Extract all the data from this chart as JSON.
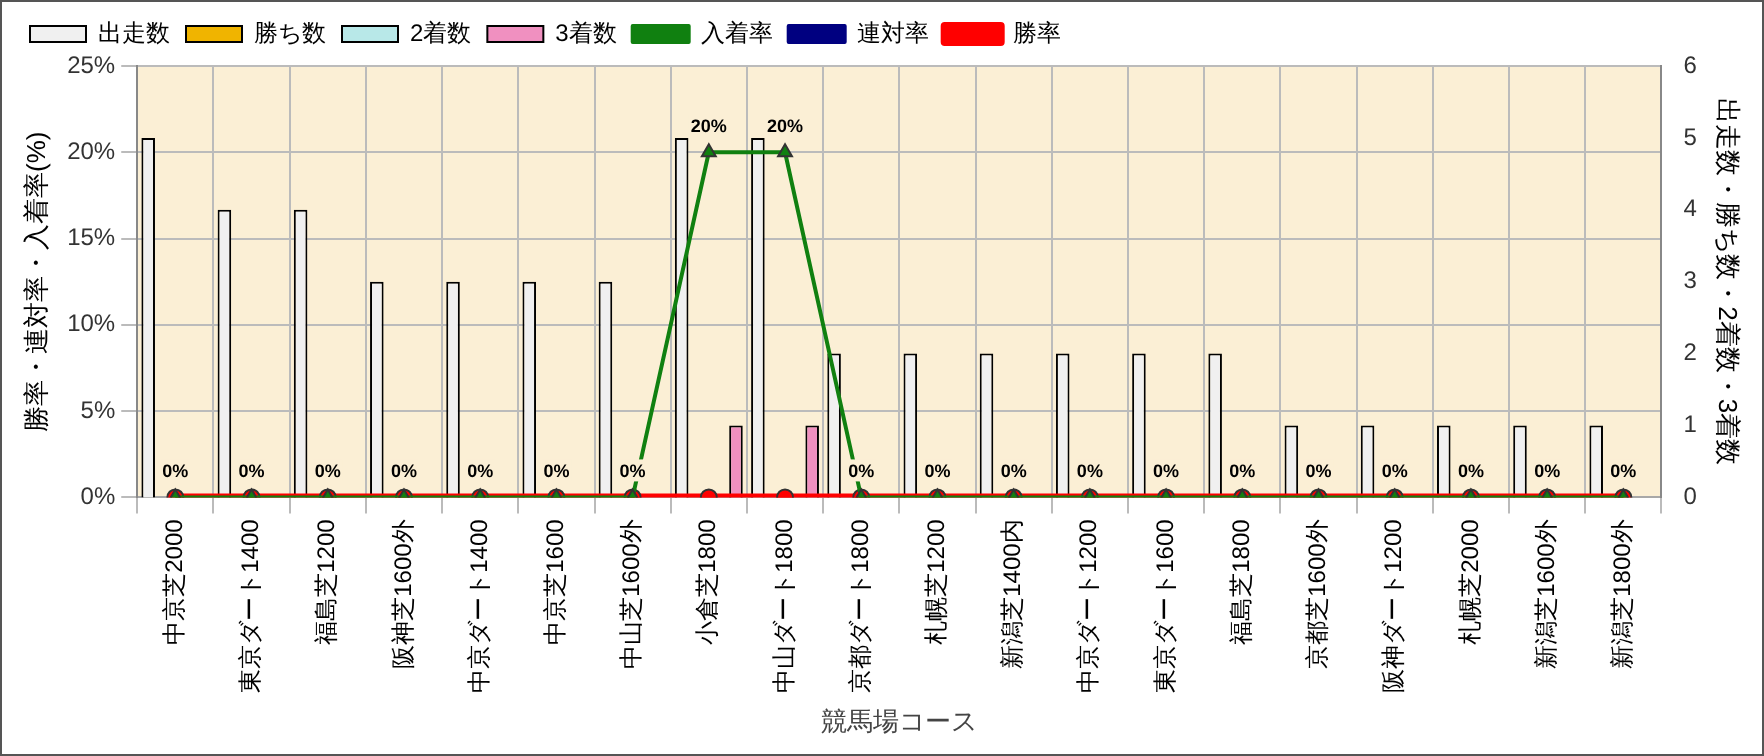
{
  "chart_data": {
    "type": "bar",
    "xlabel": "競馬場コース",
    "ylabel": "勝率・連対率・入着率(%)",
    "y2label": "出走数・勝ち数・2着数・3着数",
    "categories": [
      "中京芝2000",
      "東京ダート1400",
      "福島芝1200",
      "阪神芝1600外",
      "中京ダート1400",
      "中京芝1600",
      "中山芝1600外",
      "小倉芝1800",
      "中山ダート1800",
      "京都ダート1800",
      "札幌芝1200",
      "新潟芝1400内",
      "中京ダート1200",
      "東京ダート1600",
      "福島芝1800",
      "京都芝1600外",
      "阪神ダート1200",
      "札幌芝2000",
      "新潟芝1600外",
      "新潟芝1800外"
    ],
    "series": [
      {
        "name": "出走数",
        "axis": "y2",
        "color": "#f0f0f0",
        "values": [
          5,
          4,
          4,
          3,
          3,
          3,
          3,
          5,
          5,
          2,
          2,
          2,
          2,
          2,
          2,
          1,
          1,
          1,
          1,
          1
        ]
      },
      {
        "name": "勝ち数",
        "axis": "y2",
        "color": "#f0b400",
        "values": [
          0,
          0,
          0,
          0,
          0,
          0,
          0,
          0,
          0,
          0,
          0,
          0,
          0,
          0,
          0,
          0,
          0,
          0,
          0,
          0
        ]
      },
      {
        "name": "2着数",
        "axis": "y2",
        "color": "#b8e8e8",
        "values": [
          0,
          0,
          0,
          0,
          0,
          0,
          0,
          0,
          0,
          0,
          0,
          0,
          0,
          0,
          0,
          0,
          0,
          0,
          0,
          0
        ]
      },
      {
        "name": "3着数",
        "axis": "y2",
        "color": "#f090c0",
        "values": [
          0,
          0,
          0,
          0,
          0,
          0,
          0,
          1,
          1,
          0,
          0,
          0,
          0,
          0,
          0,
          0,
          0,
          0,
          0,
          0
        ]
      },
      {
        "name": "入着率",
        "type": "line",
        "color": "#108010",
        "marker": "triangle",
        "values": [
          0,
          0,
          0,
          0,
          0,
          0,
          0,
          20,
          20,
          0,
          0,
          0,
          0,
          0,
          0,
          0,
          0,
          0,
          0,
          0
        ],
        "value_labels": [
          "0%",
          "0%",
          "0%",
          "0%",
          "0%",
          "0%",
          "0%",
          "20%",
          "20%",
          "0%",
          "0%",
          "0%",
          "0%",
          "0%",
          "0%",
          "0%",
          "0%",
          "0%",
          "0%",
          "0%"
        ]
      },
      {
        "name": "連対率",
        "type": "line",
        "color": "#000080",
        "marker": "diamond",
        "values": [
          null,
          null,
          null,
          null,
          null,
          null,
          null,
          null,
          null,
          null,
          null,
          null,
          null,
          null,
          null,
          null,
          null,
          null,
          null,
          null
        ]
      },
      {
        "name": "勝率",
        "type": "line",
        "color": "#ff0000",
        "marker": "circle",
        "values": [
          0,
          0,
          0,
          0,
          0,
          0,
          0,
          0,
          0,
          0,
          0,
          0,
          0,
          0,
          0,
          0,
          0,
          0,
          0,
          0
        ]
      }
    ],
    "ylim": [
      0,
      25
    ],
    "yticks": [
      {
        "value": 0,
        "label": "0%"
      },
      {
        "value": 5,
        "label": "5%"
      },
      {
        "value": 10,
        "label": "10%"
      },
      {
        "value": 15,
        "label": "15%"
      },
      {
        "value": 20,
        "label": "20%"
      },
      {
        "value": 25,
        "label": "25%"
      }
    ],
    "y2lim": [
      0,
      6
    ],
    "y2ticks": [
      0,
      1,
      2,
      3,
      4,
      5,
      6
    ],
    "grid": true,
    "legend": "top"
  }
}
